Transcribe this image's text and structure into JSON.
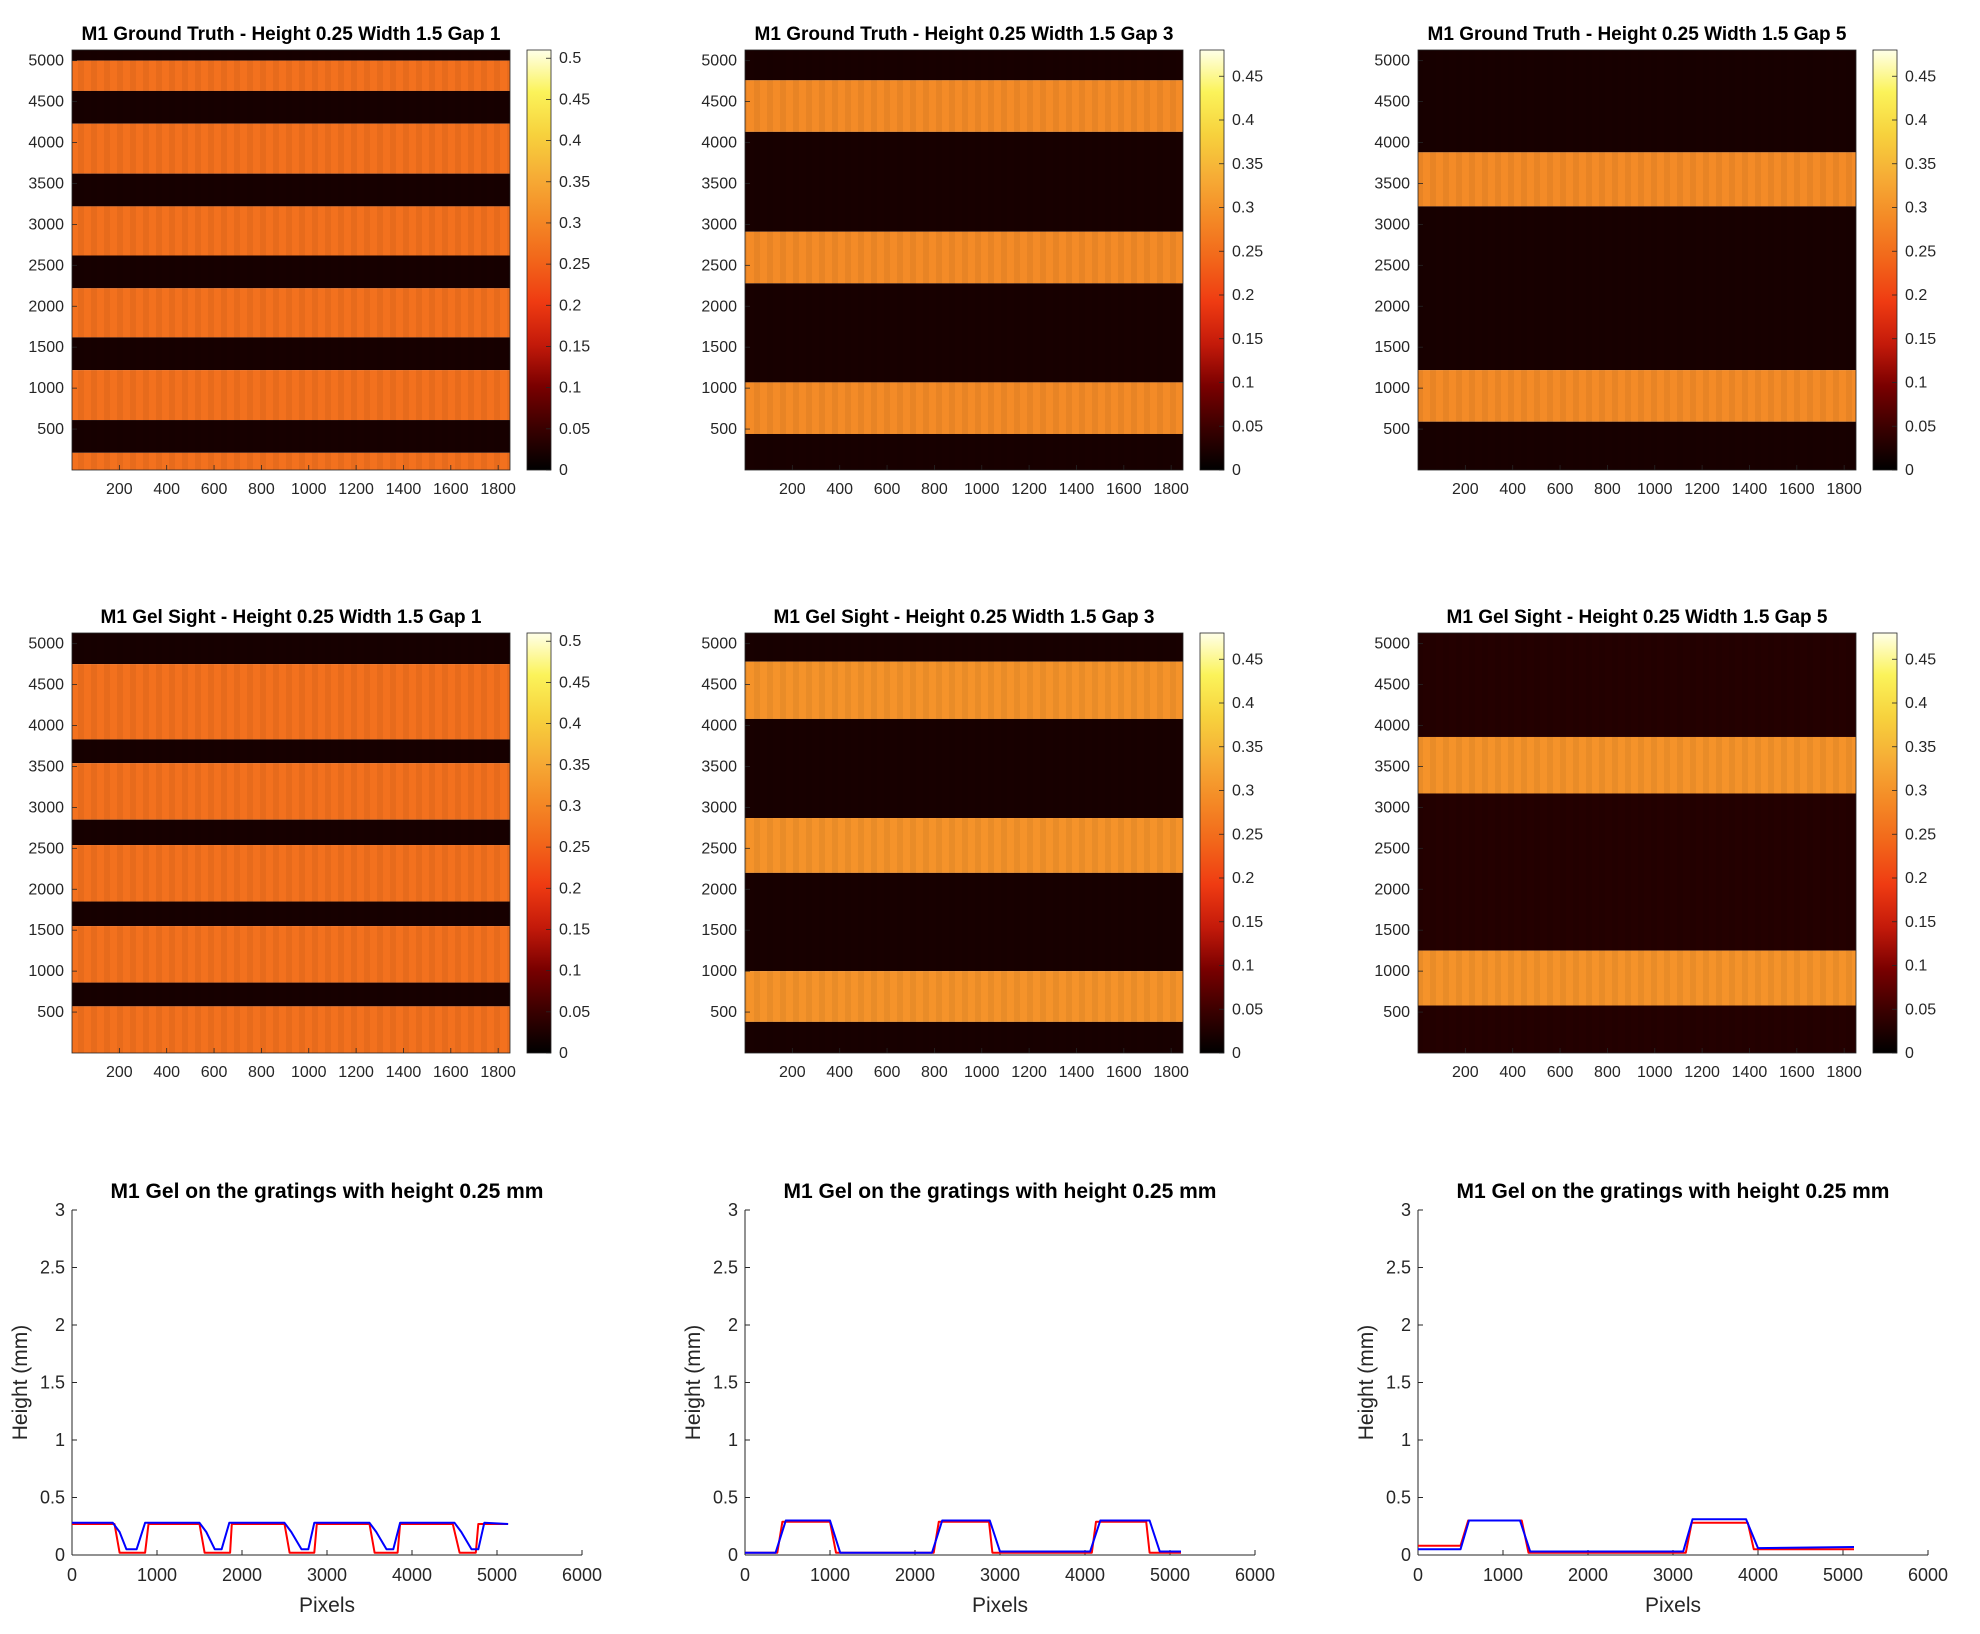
{
  "colormap": [
    "#000000",
    "#3a0000",
    "#7a0000",
    "#c41a0a",
    "#ef3b12",
    "#f2661a",
    "#f48a26",
    "#f6ad36",
    "#f7d23d",
    "#fbf35a",
    "#ffffe8"
  ],
  "heatmaps": [
    {
      "title": "M1 Ground Truth - Height 0.25 Width 1.5 Gap 1",
      "xticks": [
        "200",
        "400",
        "600",
        "800",
        "1000",
        "1200",
        "1400",
        "1600",
        "1800"
      ],
      "yticks": [
        "5000",
        "4500",
        "4000",
        "3500",
        "3000",
        "2500",
        "2000",
        "1500",
        "1000",
        "500"
      ],
      "cbar_ticks": [
        "0.5",
        "0.45",
        "0.4",
        "0.35",
        "0.3",
        "0.25",
        "0.2",
        "0.15",
        "0.1",
        "0.05",
        "0"
      ],
      "cbar_max": 0.51,
      "high_value": 0.27,
      "low_value": 0.02,
      "bands": [
        [
          0,
          5000,
          5130
        ],
        [
          1,
          4630,
          5000
        ],
        [
          0,
          4230,
          4630
        ],
        [
          1,
          3620,
          4230
        ],
        [
          0,
          3220,
          3620
        ],
        [
          1,
          2620,
          3220
        ],
        [
          0,
          2220,
          2620
        ],
        [
          1,
          1620,
          2220
        ],
        [
          0,
          1220,
          1620
        ],
        [
          1,
          610,
          1220
        ],
        [
          0,
          210,
          610
        ],
        [
          1,
          0,
          210
        ]
      ]
    },
    {
      "title": "M1 Ground Truth - Height 0.25 Width 1.5 Gap 3",
      "xticks": [
        "200",
        "400",
        "600",
        "800",
        "1000",
        "1200",
        "1400",
        "1600",
        "1800"
      ],
      "yticks": [
        "5000",
        "4500",
        "4000",
        "3500",
        "3000",
        "2500",
        "2000",
        "1500",
        "1000",
        "500"
      ],
      "cbar_ticks": [
        "0.45",
        "0.4",
        "0.35",
        "0.3",
        "0.25",
        "0.2",
        "0.15",
        "0.1",
        "0.05",
        "0"
      ],
      "cbar_max": 0.48,
      "high_value": 0.29,
      "low_value": 0.02,
      "bands": [
        [
          0,
          4760,
          5130
        ],
        [
          1,
          4130,
          4760
        ],
        [
          0,
          2910,
          4130
        ],
        [
          1,
          2280,
          2910
        ],
        [
          0,
          1070,
          2280
        ],
        [
          1,
          440,
          1070
        ],
        [
          0,
          0,
          440
        ]
      ]
    },
    {
      "title": "M1 Ground Truth - Height 0.25 Width 1.5 Gap 5",
      "xticks": [
        "200",
        "400",
        "600",
        "800",
        "1000",
        "1200",
        "1400",
        "1600",
        "1800"
      ],
      "yticks": [
        "5000",
        "4500",
        "4000",
        "3500",
        "3000",
        "2500",
        "2000",
        "1500",
        "1000",
        "500"
      ],
      "cbar_ticks": [
        "0.45",
        "0.4",
        "0.35",
        "0.3",
        "0.25",
        "0.2",
        "0.15",
        "0.1",
        "0.05",
        "0"
      ],
      "cbar_max": 0.48,
      "high_value": 0.29,
      "low_value": 0.02,
      "bands": [
        [
          0,
          3880,
          5130
        ],
        [
          1,
          3220,
          3880
        ],
        [
          0,
          1220,
          3220
        ],
        [
          1,
          590,
          1220
        ],
        [
          0,
          0,
          590
        ]
      ]
    },
    {
      "title": "M1 Gel Sight - Height 0.25 Width 1.5 Gap 1",
      "xticks": [
        "200",
        "400",
        "600",
        "800",
        "1000",
        "1200",
        "1400",
        "1600",
        "1800"
      ],
      "yticks": [
        "5000",
        "4500",
        "4000",
        "3500",
        "3000",
        "2500",
        "2000",
        "1500",
        "1000",
        "500"
      ],
      "cbar_ticks": [
        "0.5",
        "0.45",
        "0.4",
        "0.35",
        "0.3",
        "0.25",
        "0.2",
        "0.15",
        "0.1",
        "0.05",
        "0"
      ],
      "cbar_max": 0.51,
      "high_value": 0.27,
      "low_value": 0.02,
      "bands": [
        [
          1,
          5130,
          5130
        ],
        [
          0,
          4750,
          5130
        ],
        [
          1,
          3830,
          4750
        ],
        [
          0,
          3540,
          3830
        ],
        [
          1,
          2850,
          3540
        ],
        [
          0,
          2540,
          2850
        ],
        [
          1,
          1850,
          2540
        ],
        [
          0,
          1550,
          1850
        ],
        [
          1,
          860,
          1550
        ],
        [
          0,
          570,
          860
        ],
        [
          1,
          0,
          570
        ]
      ]
    },
    {
      "title": "M1 Gel Sight - Height 0.25 Width 1.5 Gap 3",
      "xticks": [
        "200",
        "400",
        "600",
        "800",
        "1000",
        "1200",
        "1400",
        "1600",
        "1800"
      ],
      "yticks": [
        "5000",
        "4500",
        "4000",
        "3500",
        "3000",
        "2500",
        "2000",
        "1500",
        "1000",
        "500"
      ],
      "cbar_ticks": [
        "0.45",
        "0.4",
        "0.35",
        "0.3",
        "0.25",
        "0.2",
        "0.15",
        "0.1",
        "0.05",
        "0"
      ],
      "cbar_max": 0.48,
      "high_value": 0.3,
      "low_value": 0.02,
      "bands": [
        [
          0,
          4780,
          5130
        ],
        [
          1,
          4080,
          4780
        ],
        [
          0,
          2870,
          4080
        ],
        [
          1,
          2200,
          2870
        ],
        [
          0,
          1000,
          2200
        ],
        [
          1,
          380,
          1000
        ],
        [
          0,
          0,
          380
        ]
      ]
    },
    {
      "title": "M1 Gel Sight - Height 0.25 Width 1.5 Gap 5",
      "xticks": [
        "200",
        "400",
        "600",
        "800",
        "1000",
        "1200",
        "1400",
        "1600",
        "1800"
      ],
      "yticks": [
        "5000",
        "4500",
        "4000",
        "3500",
        "3000",
        "2500",
        "2000",
        "1500",
        "1000",
        "500"
      ],
      "cbar_ticks": [
        "0.45",
        "0.4",
        "0.35",
        "0.3",
        "0.25",
        "0.2",
        "0.15",
        "0.1",
        "0.05",
        "0"
      ],
      "cbar_max": 0.48,
      "high_value": 0.3,
      "low_value": 0.03,
      "bands": [
        [
          0,
          3860,
          5130
        ],
        [
          1,
          3170,
          3860
        ],
        [
          0,
          1250,
          3170
        ],
        [
          1,
          580,
          1250
        ],
        [
          0,
          0,
          580
        ]
      ]
    }
  ],
  "chart_data": [
    {
      "type": "line",
      "title": "M1 Gel on the gratings with height 0.25 mm",
      "xlabel": "Pixels",
      "ylabel": "Height (mm)",
      "xlim": [
        0,
        6000
      ],
      "ylim": [
        0,
        3
      ],
      "xticks": [
        "0",
        "1000",
        "2000",
        "3000",
        "4000",
        "5000",
        "6000"
      ],
      "yticks": [
        "0",
        "0.5",
        "1",
        "1.5",
        "2",
        "2.5",
        "3"
      ],
      "series": [
        {
          "color": "#ff0000",
          "x": [
            0,
            440,
            500,
            560,
            640,
            860,
            900,
            920,
            1500,
            1560,
            1640,
            1860,
            1880,
            2500,
            2560,
            2640,
            2850,
            2880,
            3500,
            3560,
            3640,
            3830,
            3860,
            4480,
            4560,
            4640,
            4750,
            4780,
            5130
          ],
          "y": [
            0.27,
            0.27,
            0.27,
            0.02,
            0.02,
            0.02,
            0.27,
            0.27,
            0.27,
            0.02,
            0.02,
            0.02,
            0.27,
            0.27,
            0.02,
            0.02,
            0.02,
            0.27,
            0.27,
            0.02,
            0.02,
            0.02,
            0.27,
            0.27,
            0.02,
            0.02,
            0.02,
            0.27,
            0.27
          ]
        },
        {
          "color": "#0000ff",
          "x": [
            0,
            480,
            560,
            640,
            760,
            860,
            1500,
            1580,
            1680,
            1760,
            1850,
            2500,
            2580,
            2700,
            2780,
            2850,
            3500,
            3580,
            3700,
            3780,
            3860,
            4500,
            4580,
            4700,
            4780,
            4850,
            5130
          ],
          "y": [
            0.28,
            0.28,
            0.2,
            0.05,
            0.05,
            0.28,
            0.28,
            0.2,
            0.05,
            0.05,
            0.28,
            0.28,
            0.2,
            0.05,
            0.05,
            0.28,
            0.28,
            0.2,
            0.05,
            0.05,
            0.28,
            0.28,
            0.2,
            0.05,
            0.05,
            0.28,
            0.27
          ]
        }
      ]
    },
    {
      "type": "line",
      "title": "M1 Gel on the gratings with height 0.25 mm",
      "xlabel": "Pixels",
      "ylabel": "Height (mm)",
      "xlim": [
        0,
        6000
      ],
      "ylim": [
        0,
        3
      ],
      "xticks": [
        "0",
        "1000",
        "2000",
        "3000",
        "4000",
        "5000",
        "6000"
      ],
      "yticks": [
        "0",
        "0.5",
        "1",
        "1.5",
        "2",
        "2.5",
        "3"
      ],
      "series": [
        {
          "color": "#ff0000",
          "x": [
            0,
            380,
            440,
            1000,
            1070,
            2220,
            2280,
            2870,
            2910,
            4080,
            4130,
            4720,
            4760,
            5130
          ],
          "y": [
            0.02,
            0.02,
            0.29,
            0.29,
            0.02,
            0.02,
            0.29,
            0.29,
            0.02,
            0.02,
            0.29,
            0.29,
            0.02,
            0.02
          ]
        },
        {
          "color": "#0000ff",
          "x": [
            0,
            360,
            480,
            1000,
            1120,
            2200,
            2320,
            2880,
            3000,
            4060,
            4180,
            4760,
            4880,
            5130
          ],
          "y": [
            0.02,
            0.02,
            0.3,
            0.3,
            0.02,
            0.02,
            0.3,
            0.3,
            0.03,
            0.03,
            0.3,
            0.3,
            0.03,
            0.03
          ]
        }
      ]
    },
    {
      "type": "line",
      "title": "M1 Gel on the gratings with height 0.25 mm",
      "xlabel": "Pixels",
      "ylabel": "Height (mm)",
      "xlim": [
        0,
        6000
      ],
      "ylim": [
        0,
        3
      ],
      "xticks": [
        "0",
        "1000",
        "2000",
        "3000",
        "4000",
        "5000",
        "6000"
      ],
      "yticks": [
        "0",
        "0.5",
        "1",
        "1.5",
        "2",
        "2.5",
        "3"
      ],
      "series": [
        {
          "color": "#ff0000",
          "x": [
            0,
            500,
            590,
            1220,
            1300,
            3150,
            3220,
            3880,
            3950,
            5130
          ],
          "y": [
            0.08,
            0.08,
            0.3,
            0.3,
            0.02,
            0.02,
            0.28,
            0.28,
            0.05,
            0.05
          ]
        },
        {
          "color": "#0000ff",
          "x": [
            0,
            500,
            600,
            1200,
            1320,
            3120,
            3230,
            3860,
            4000,
            5130
          ],
          "y": [
            0.05,
            0.05,
            0.3,
            0.3,
            0.03,
            0.03,
            0.31,
            0.31,
            0.06,
            0.07
          ]
        }
      ]
    }
  ]
}
